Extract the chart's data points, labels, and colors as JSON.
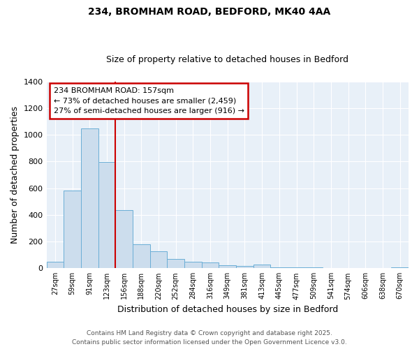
{
  "title_line1": "234, BROMHAM ROAD, BEDFORD, MK40 4AA",
  "title_line2": "Size of property relative to detached houses in Bedford",
  "xlabel": "Distribution of detached houses by size in Bedford",
  "ylabel": "Number of detached properties",
  "bar_labels": [
    "27sqm",
    "59sqm",
    "91sqm",
    "123sqm",
    "156sqm",
    "188sqm",
    "220sqm",
    "252sqm",
    "284sqm",
    "316sqm",
    "349sqm",
    "381sqm",
    "413sqm",
    "445sqm",
    "477sqm",
    "509sqm",
    "541sqm",
    "574sqm",
    "606sqm",
    "638sqm",
    "670sqm"
  ],
  "bar_values": [
    50,
    585,
    1050,
    795,
    435,
    180,
    125,
    70,
    50,
    45,
    25,
    18,
    30,
    5,
    5,
    5,
    0,
    0,
    0,
    0,
    5
  ],
  "bar_color": "#ccdded",
  "bar_edge_color": "#6aaed6",
  "vline_color": "#cc0000",
  "vline_x_index": 3.5,
  "annotation_title": "234 BROMHAM ROAD: 157sqm",
  "annotation_line2": "← 73% of detached houses are smaller (2,459)",
  "annotation_line3": "27% of semi-detached houses are larger (916) →",
  "annotation_box_color": "#cc0000",
  "annotation_bg": "#ffffff",
  "ylim": [
    0,
    1400
  ],
  "yticks": [
    0,
    200,
    400,
    600,
    800,
    1000,
    1200,
    1400
  ],
  "footer_line1": "Contains HM Land Registry data © Crown copyright and database right 2025.",
  "footer_line2": "Contains public sector information licensed under the Open Government Licence v3.0.",
  "bg_color": "#ffffff",
  "plot_bg_color": "#e8f0f8",
  "grid_color": "#ffffff",
  "title_fontsize": 10,
  "subtitle_fontsize": 9,
  "tick_fontsize": 7,
  "label_fontsize": 9,
  "footer_fontsize": 6.5,
  "ann_fontsize": 8
}
